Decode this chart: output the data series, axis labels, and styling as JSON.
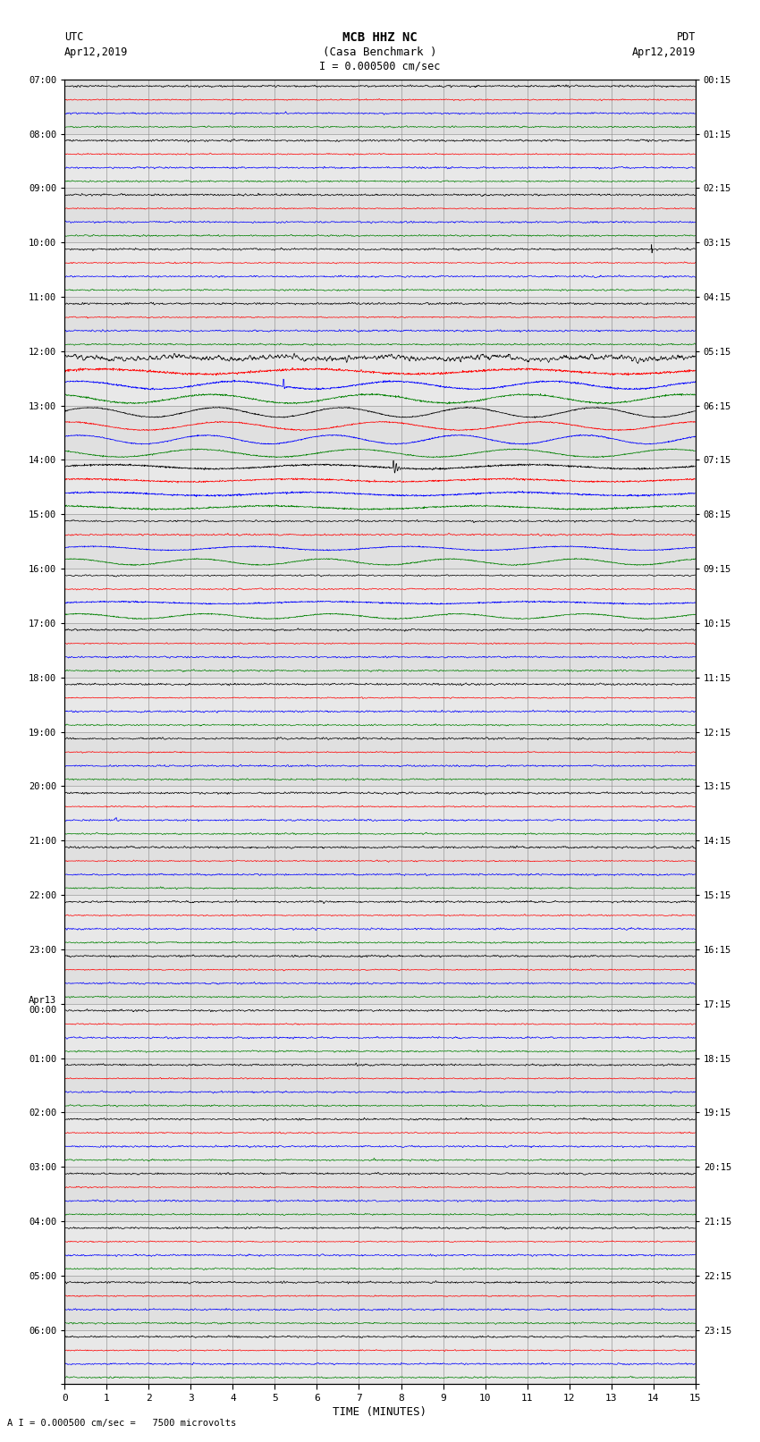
{
  "title_line1": "MCB HHZ NC",
  "title_line2": "(Casa Benchmark )",
  "scale_label": "I = 0.000500 cm/sec",
  "left_label_top": "UTC",
  "left_label_date": "Apr12,2019",
  "right_label_top": "PDT",
  "right_label_date": "Apr12,2019",
  "bottom_label": "TIME (MINUTES)",
  "scale_note": "A I = 0.000500 cm/sec =   7500 microvolts",
  "utc_times_major": [
    "07:00",
    "08:00",
    "09:00",
    "10:00",
    "11:00",
    "12:00",
    "13:00",
    "14:00",
    "15:00",
    "16:00",
    "17:00",
    "18:00",
    "19:00",
    "20:00",
    "21:00",
    "22:00",
    "23:00",
    "Apr13\n00:00",
    "01:00",
    "02:00",
    "03:00",
    "04:00",
    "05:00",
    "06:00"
  ],
  "pdt_times_major": [
    "00:15",
    "01:15",
    "02:15",
    "03:15",
    "04:15",
    "05:15",
    "06:15",
    "07:15",
    "08:15",
    "09:15",
    "10:15",
    "11:15",
    "12:15",
    "13:15",
    "14:15",
    "15:15",
    "16:15",
    "17:15",
    "18:15",
    "19:15",
    "20:15",
    "21:15",
    "22:15",
    "23:15"
  ],
  "colors": [
    "black",
    "red",
    "blue",
    "green"
  ],
  "n_hours": 24,
  "n_channels": 4,
  "n_pts": 1800,
  "xmin": 0,
  "xmax": 15,
  "xticks": [
    0,
    1,
    2,
    3,
    4,
    5,
    6,
    7,
    8,
    9,
    10,
    11,
    12,
    13,
    14,
    15
  ],
  "bg_color": "#f0f0f0",
  "grid_color": "#aaaaaa"
}
